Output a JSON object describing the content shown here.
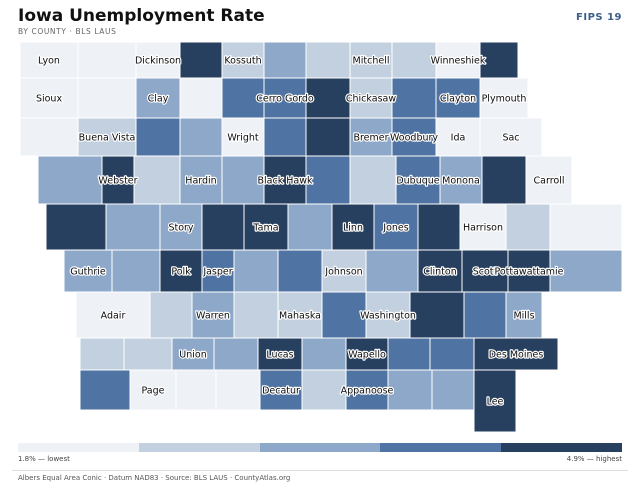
{
  "header": {
    "title": "Iowa Unemployment Rate",
    "subtitle": "BY COUNTY · BLS LAUS",
    "fips": "FIPS 19"
  },
  "colors": {
    "class1": "#eef2f7",
    "class2": "#c3d0e0",
    "class3": "#8ea8c9",
    "class4": "#4f73a2",
    "class5": "#28405f"
  },
  "legend": {
    "low_label": "1.8% — lowest",
    "high_label": "4.9% — highest",
    "classes": [
      "class1",
      "class2",
      "class3",
      "class4",
      "class5"
    ]
  },
  "footer": "Albers Equal Area Conic · Datum NAD83 · Source: BLS LAUS · CountyAtlas.org",
  "counties": [
    {
      "name": "Lyon",
      "class": 1,
      "label": "Lyon"
    },
    {
      "name": "Osceola",
      "class": 1,
      "label": ""
    },
    {
      "name": "Dickinson",
      "class": 1,
      "label": "Dickinson"
    },
    {
      "name": "Emmet",
      "class": 5,
      "label": ""
    },
    {
      "name": "Kossuth",
      "class": 2,
      "label": "Kossuth"
    },
    {
      "name": "Winnebago",
      "class": 3,
      "label": ""
    },
    {
      "name": "Worth",
      "class": 2,
      "label": ""
    },
    {
      "name": "Mitchell",
      "class": 2,
      "label": "Mitchell"
    },
    {
      "name": "Howard",
      "class": 2,
      "label": ""
    },
    {
      "name": "Winneshiek",
      "class": 1,
      "label": "Winneshiek"
    },
    {
      "name": "Allamakee",
      "class": 5,
      "label": ""
    },
    {
      "name": "Sioux",
      "class": 1,
      "label": "Sioux"
    },
    {
      "name": "O'Brien",
      "class": 1,
      "label": ""
    },
    {
      "name": "Clay",
      "class": 3,
      "label": "Clay"
    },
    {
      "name": "Palo Alto",
      "class": 1,
      "label": ""
    },
    {
      "name": "Hancock",
      "class": 4,
      "label": ""
    },
    {
      "name": "Cerro Gordo",
      "class": 4,
      "label": "Cerro Gordo"
    },
    {
      "name": "Floyd",
      "class": 5,
      "label": ""
    },
    {
      "name": "Chickasaw",
      "class": 2,
      "label": "Chickasaw"
    },
    {
      "name": "Fayette",
      "class": 4,
      "label": ""
    },
    {
      "name": "Clayton",
      "class": 4,
      "label": "Clayton"
    },
    {
      "name": "Plymouth",
      "class": 1,
      "label": "Plymouth"
    },
    {
      "name": "Cherokee",
      "class": 1,
      "label": ""
    },
    {
      "name": "Buena Vista",
      "class": 2,
      "label": "Buena Vista"
    },
    {
      "name": "Pocahontas",
      "class": 4,
      "label": ""
    },
    {
      "name": "Humboldt",
      "class": 3,
      "label": ""
    },
    {
      "name": "Wright",
      "class": 1,
      "label": "Wright"
    },
    {
      "name": "Franklin",
      "class": 4,
      "label": ""
    },
    {
      "name": "Butler",
      "class": 5,
      "label": ""
    },
    {
      "name": "Bremer",
      "class": 3,
      "label": "Bremer"
    },
    {
      "name": "Woodbury",
      "class": 4,
      "label": "Woodbury"
    },
    {
      "name": "Ida",
      "class": 1,
      "label": "Ida"
    },
    {
      "name": "Sac",
      "class": 1,
      "label": "Sac"
    },
    {
      "name": "Calhoun",
      "class": 3,
      "label": ""
    },
    {
      "name": "Webster",
      "class": 5,
      "label": "Webster"
    },
    {
      "name": "Hamilton",
      "class": 2,
      "label": ""
    },
    {
      "name": "Hardin",
      "class": 3,
      "label": "Hardin"
    },
    {
      "name": "Grundy",
      "class": 3,
      "label": ""
    },
    {
      "name": "Black Hawk",
      "class": 5,
      "label": "Black Hawk"
    },
    {
      "name": "Buchanan",
      "class": 4,
      "label": ""
    },
    {
      "name": "Delaware",
      "class": 2,
      "label": ""
    },
    {
      "name": "Dubuque",
      "class": 4,
      "label": "Dubuque"
    },
    {
      "name": "Monona",
      "class": 3,
      "label": "Monona"
    },
    {
      "name": "Crawford",
      "class": 5,
      "label": ""
    },
    {
      "name": "Carroll",
      "class": 1,
      "label": "Carroll"
    },
    {
      "name": "Greene",
      "class": 5,
      "label": ""
    },
    {
      "name": "Boone",
      "class": 3,
      "label": ""
    },
    {
      "name": "Story",
      "class": 3,
      "label": "Story"
    },
    {
      "name": "Marshall",
      "class": 5,
      "label": ""
    },
    {
      "name": "Tama",
      "class": 5,
      "label": "Tama"
    },
    {
      "name": "Benton",
      "class": 3,
      "label": ""
    },
    {
      "name": "Linn",
      "class": 5,
      "label": "Linn"
    },
    {
      "name": "Jones",
      "class": 4,
      "label": "Jones"
    },
    {
      "name": "Jackson",
      "class": 5,
      "label": ""
    },
    {
      "name": "Harrison",
      "class": 1,
      "label": "Harrison"
    },
    {
      "name": "Shelby",
      "class": 2,
      "label": ""
    },
    {
      "name": "Audubon",
      "class": 1,
      "label": ""
    },
    {
      "name": "Guthrie",
      "class": 3,
      "label": "Guthrie"
    },
    {
      "name": "Dallas",
      "class": 3,
      "label": ""
    },
    {
      "name": "Polk",
      "class": 5,
      "label": "Polk"
    },
    {
      "name": "Jasper",
      "class": 4,
      "label": "Jasper"
    },
    {
      "name": "Poweshiek",
      "class": 3,
      "label": ""
    },
    {
      "name": "Iowa",
      "class": 4,
      "label": ""
    },
    {
      "name": "Johnson",
      "class": 2,
      "label": "Johnson"
    },
    {
      "name": "Cedar",
      "class": 3,
      "label": ""
    },
    {
      "name": "Clinton",
      "class": 5,
      "label": "Clinton"
    },
    {
      "name": "Scott",
      "class": 5,
      "label": "Scott"
    },
    {
      "name": "Pottawattamie",
      "class": 5,
      "label": "Pottawattamie"
    },
    {
      "name": "Cass",
      "class": 3,
      "label": ""
    },
    {
      "name": "Adair",
      "class": 1,
      "label": "Adair"
    },
    {
      "name": "Madison",
      "class": 2,
      "label": ""
    },
    {
      "name": "Warren",
      "class": 3,
      "label": "Warren"
    },
    {
      "name": "Marion",
      "class": 2,
      "label": ""
    },
    {
      "name": "Mahaska",
      "class": 2,
      "label": "Mahaska"
    },
    {
      "name": "Keokuk",
      "class": 4,
      "label": ""
    },
    {
      "name": "Washington",
      "class": 2,
      "label": "Washington"
    },
    {
      "name": "Muscatine",
      "class": 5,
      "label": ""
    },
    {
      "name": "Louisa",
      "class": 4,
      "label": ""
    },
    {
      "name": "Mills",
      "class": 3,
      "label": "Mills"
    },
    {
      "name": "Montgomery",
      "class": 2,
      "label": ""
    },
    {
      "name": "Adams",
      "class": 2,
      "label": ""
    },
    {
      "name": "Union",
      "class": 3,
      "label": "Union"
    },
    {
      "name": "Clarke",
      "class": 3,
      "label": ""
    },
    {
      "name": "Lucas",
      "class": 5,
      "label": "Lucas"
    },
    {
      "name": "Monroe",
      "class": 3,
      "label": ""
    },
    {
      "name": "Wapello",
      "class": 5,
      "label": "Wapello"
    },
    {
      "name": "Jefferson",
      "class": 4,
      "label": ""
    },
    {
      "name": "Henry",
      "class": 4,
      "label": ""
    },
    {
      "name": "Des Moines",
      "class": 5,
      "label": "Des Moines"
    },
    {
      "name": "Fremont",
      "class": 4,
      "label": ""
    },
    {
      "name": "Page",
      "class": 1,
      "label": "Page"
    },
    {
      "name": "Taylor",
      "class": 1,
      "label": ""
    },
    {
      "name": "Ringgold",
      "class": 1,
      "label": ""
    },
    {
      "name": "Decatur",
      "class": 4,
      "label": "Decatur"
    },
    {
      "name": "Wayne",
      "class": 2,
      "label": ""
    },
    {
      "name": "Appanoose",
      "class": 4,
      "label": "Appanoose"
    },
    {
      "name": "Davis",
      "class": 3,
      "label": ""
    },
    {
      "name": "Van Buren",
      "class": 3,
      "label": ""
    },
    {
      "name": "Lee",
      "class": 5,
      "label": "Lee"
    }
  ]
}
